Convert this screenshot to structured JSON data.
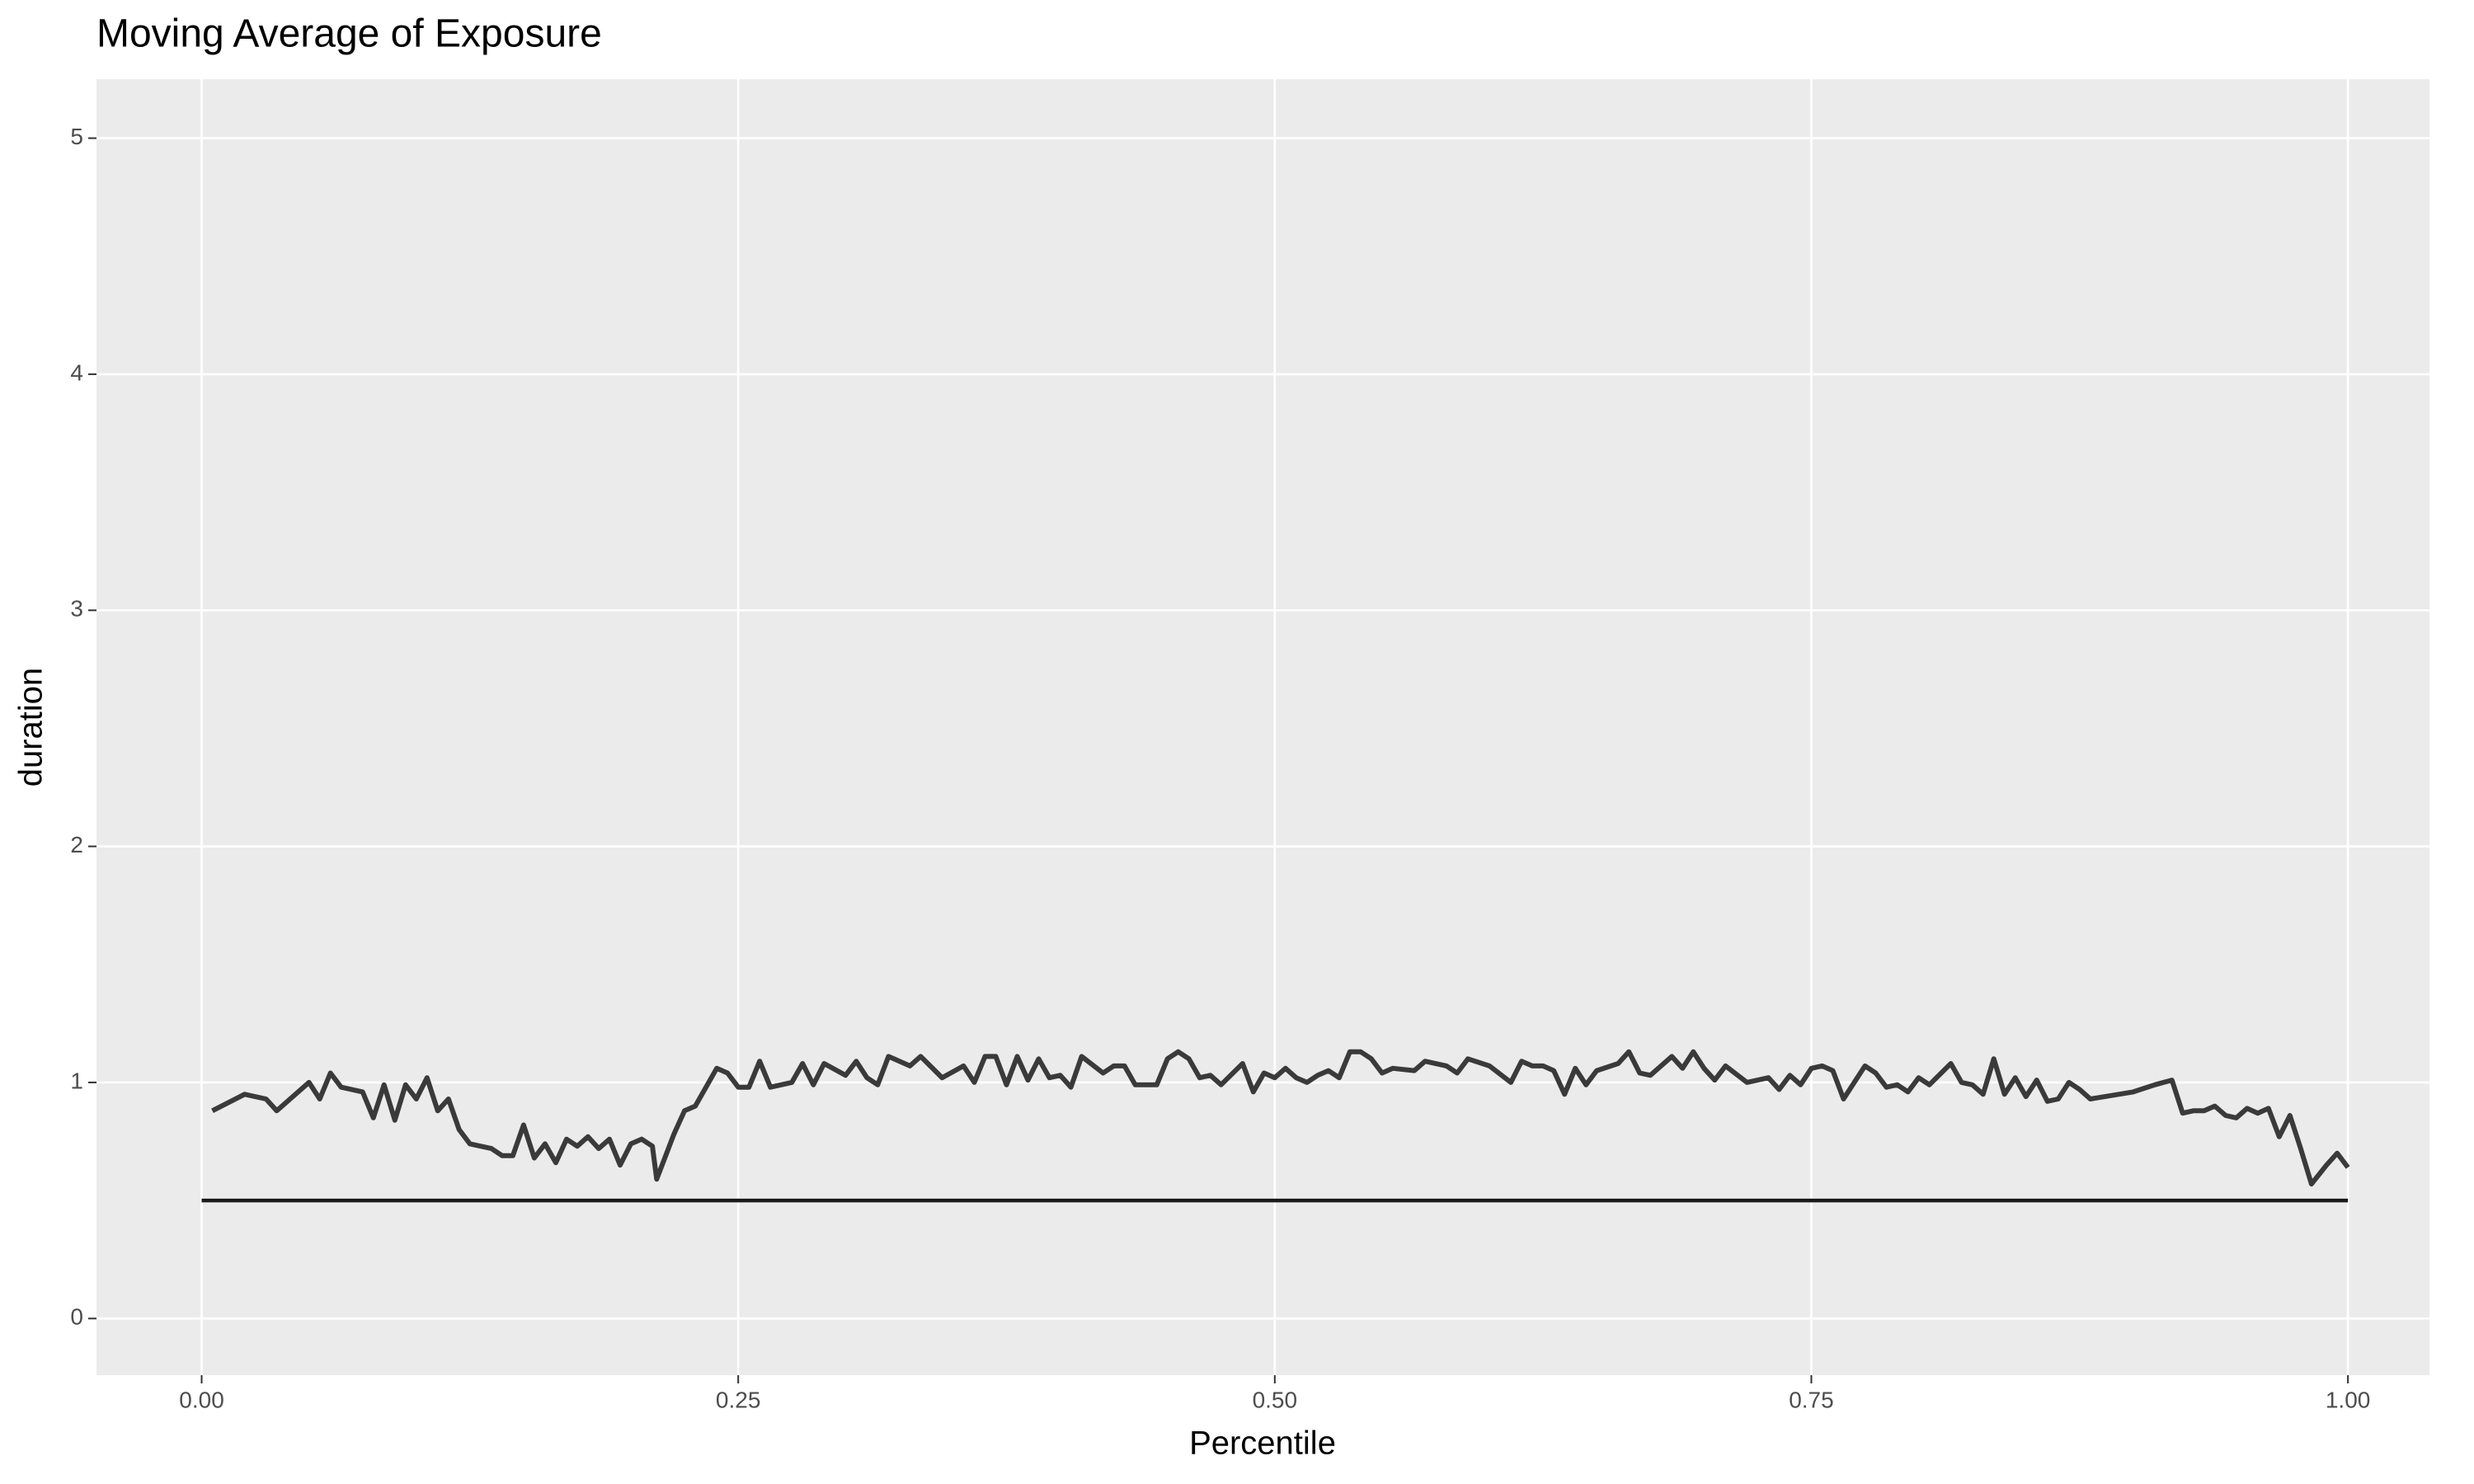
{
  "chart_data": {
    "type": "line",
    "title": "Moving Average of Exposure",
    "x_label": "Percentile",
    "y_label": "duration",
    "xlim": [
      -0.049,
      1.038
    ],
    "ylim": [
      -0.24,
      5.25
    ],
    "xticks": [
      {
        "value": 0,
        "label": "0.00"
      },
      0.25,
      {
        "value": 0.5,
        "label": "0.50"
      },
      0.75,
      {
        "value": 1,
        "label": "1.00"
      }
    ],
    "yticks": [
      0,
      1,
      2,
      3,
      4,
      5
    ],
    "grid": true,
    "reference_line": {
      "y": 0.5,
      "x": [
        0,
        1
      ],
      "color": "#1a1a1a"
    },
    "series": [
      {
        "color": "#3a3a3a",
        "x": [
          0.005,
          0.02,
          0.03,
          0.035,
          0.05,
          0.055,
          0.06,
          0.065,
          0.075,
          0.08,
          0.085,
          0.09,
          0.095,
          0.1,
          0.105,
          0.11,
          0.115,
          0.12,
          0.125,
          0.135,
          0.14,
          0.145,
          0.15,
          0.155,
          0.16,
          0.165,
          0.17,
          0.175,
          0.18,
          0.185,
          0.19,
          0.195,
          0.2,
          0.205,
          0.21,
          0.212,
          0.22,
          0.225,
          0.23,
          0.24,
          0.245,
          0.25,
          0.255,
          0.26,
          0.265,
          0.275,
          0.28,
          0.285,
          0.29,
          0.3,
          0.305,
          0.31,
          0.315,
          0.32,
          0.33,
          0.335,
          0.345,
          0.355,
          0.36,
          0.365,
          0.37,
          0.375,
          0.38,
          0.385,
          0.39,
          0.395,
          0.4,
          0.405,
          0.41,
          0.42,
          0.425,
          0.43,
          0.435,
          0.445,
          0.45,
          0.455,
          0.46,
          0.465,
          0.47,
          0.475,
          0.485,
          0.49,
          0.495,
          0.5,
          0.505,
          0.51,
          0.515,
          0.52,
          0.525,
          0.53,
          0.535,
          0.54,
          0.545,
          0.55,
          0.555,
          0.565,
          0.57,
          0.58,
          0.585,
          0.59,
          0.6,
          0.61,
          0.615,
          0.62,
          0.625,
          0.63,
          0.635,
          0.64,
          0.645,
          0.65,
          0.66,
          0.665,
          0.67,
          0.675,
          0.685,
          0.69,
          0.695,
          0.7,
          0.705,
          0.71,
          0.72,
          0.73,
          0.735,
          0.74,
          0.745,
          0.75,
          0.755,
          0.76,
          0.765,
          0.77,
          0.775,
          0.78,
          0.785,
          0.79,
          0.795,
          0.8,
          0.805,
          0.815,
          0.82,
          0.825,
          0.83,
          0.835,
          0.84,
          0.845,
          0.85,
          0.855,
          0.86,
          0.865,
          0.87,
          0.875,
          0.88,
          0.9,
          0.91,
          0.918,
          0.923,
          0.928,
          0.933,
          0.938,
          0.943,
          0.948,
          0.953,
          0.958,
          0.963,
          0.968,
          0.973,
          0.978,
          0.983,
          0.99,
          0.995,
          1.0
        ],
        "values": [
          0.88,
          0.95,
          0.93,
          0.88,
          1.0,
          0.93,
          1.04,
          0.98,
          0.96,
          0.85,
          0.99,
          0.84,
          0.99,
          0.93,
          1.02,
          0.88,
          0.93,
          0.8,
          0.74,
          0.72,
          0.69,
          0.69,
          0.82,
          0.68,
          0.74,
          0.66,
          0.76,
          0.73,
          0.77,
          0.72,
          0.76,
          0.65,
          0.74,
          0.76,
          0.73,
          0.59,
          0.78,
          0.88,
          0.9,
          1.06,
          1.04,
          0.98,
          0.98,
          1.09,
          0.98,
          1.0,
          1.08,
          0.99,
          1.08,
          1.03,
          1.09,
          1.02,
          0.99,
          1.11,
          1.07,
          1.11,
          1.02,
          1.07,
          1.0,
          1.11,
          1.11,
          0.99,
          1.11,
          1.01,
          1.1,
          1.02,
          1.03,
          0.98,
          1.11,
          1.04,
          1.07,
          1.07,
          0.99,
          0.99,
          1.1,
          1.13,
          1.1,
          1.02,
          1.03,
          0.99,
          1.08,
          0.96,
          1.04,
          1.02,
          1.06,
          1.02,
          1.0,
          1.03,
          1.05,
          1.02,
          1.13,
          1.13,
          1.1,
          1.04,
          1.06,
          1.05,
          1.09,
          1.07,
          1.04,
          1.1,
          1.07,
          1.0,
          1.09,
          1.07,
          1.07,
          1.05,
          0.95,
          1.06,
          0.99,
          1.05,
          1.08,
          1.13,
          1.04,
          1.03,
          1.11,
          1.06,
          1.13,
          1.06,
          1.01,
          1.07,
          1.0,
          1.02,
          0.97,
          1.03,
          0.99,
          1.06,
          1.07,
          1.05,
          0.93,
          1.0,
          1.07,
          1.04,
          0.98,
          0.99,
          0.96,
          1.02,
          0.99,
          1.08,
          1.0,
          0.99,
          0.95,
          1.1,
          0.95,
          1.02,
          0.94,
          1.01,
          0.92,
          0.93,
          1.0,
          0.97,
          0.93,
          0.96,
          0.99,
          1.01,
          0.87,
          0.88,
          0.88,
          0.9,
          0.86,
          0.85,
          0.89,
          0.87,
          0.89,
          0.77,
          0.86,
          0.72,
          0.57,
          0.65,
          0.7,
          0.64
        ]
      }
    ]
  }
}
